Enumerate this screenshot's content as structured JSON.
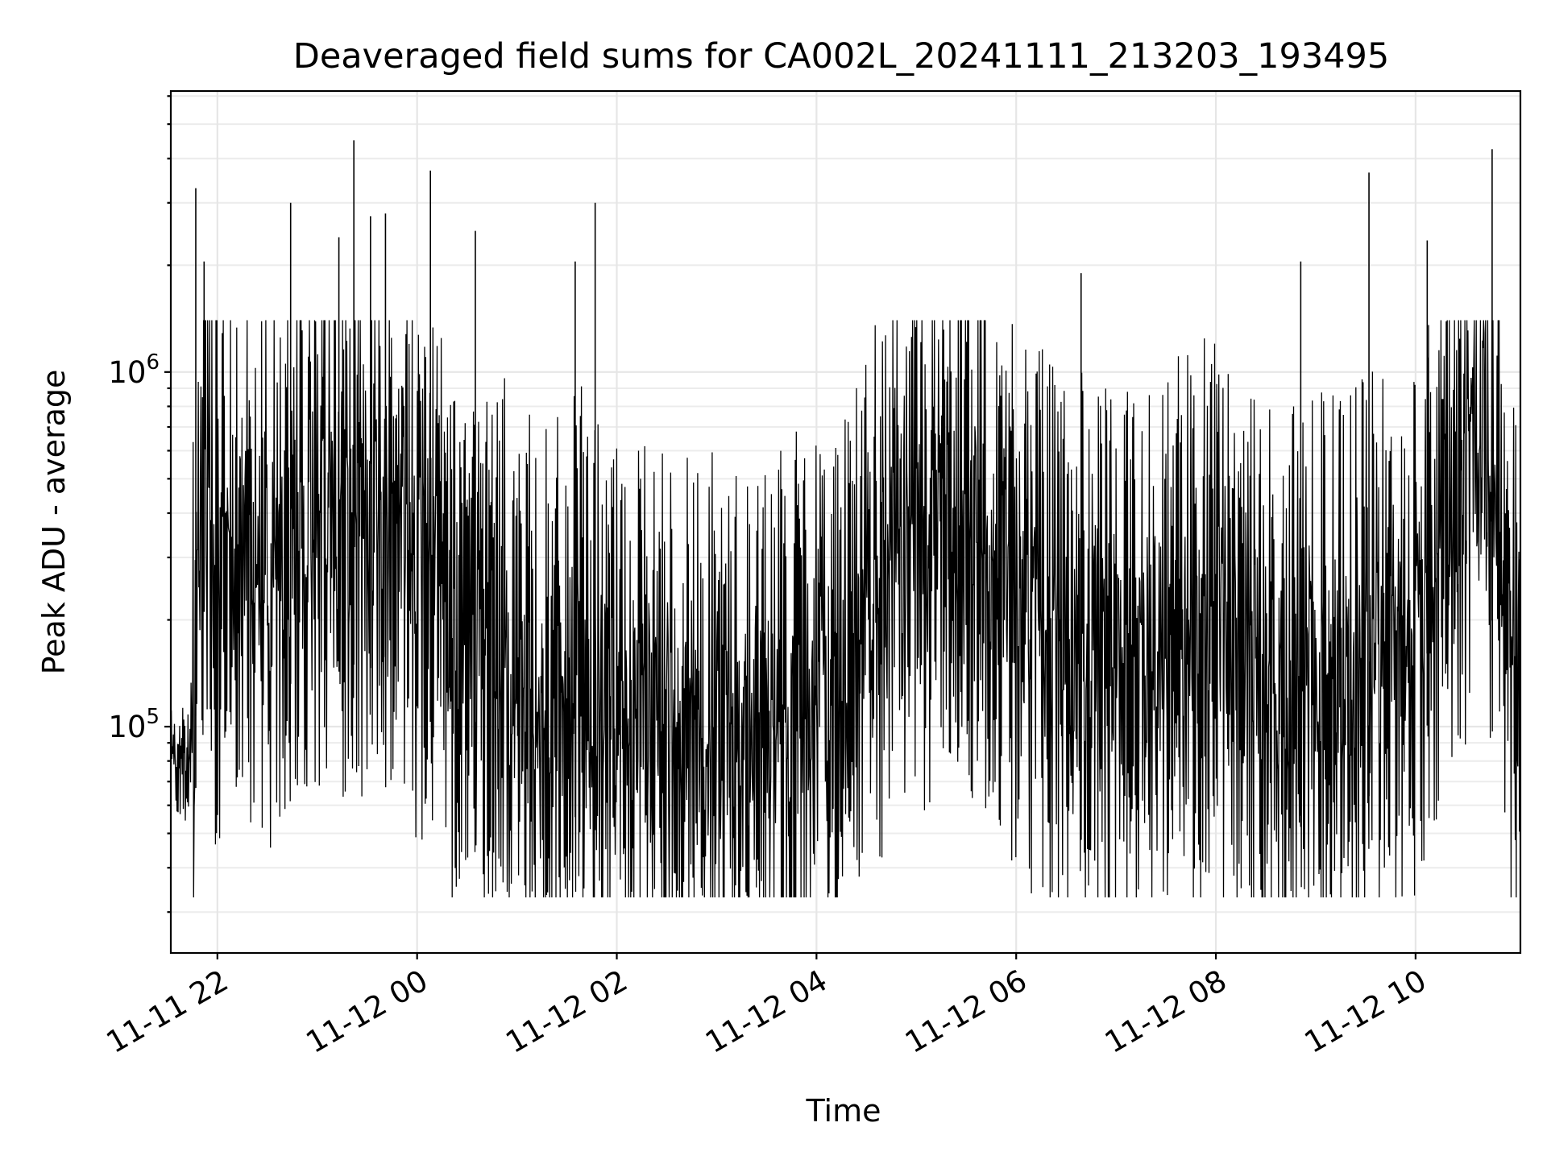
{
  "chart_data": {
    "type": "line",
    "title": "Deaveraged field sums for CA002L_20241111_213203_193495",
    "xlabel": "Time",
    "ylabel": "Peak ADU - average",
    "yscale": "log",
    "xlim": [
      "2024-11-11 21:32",
      "2024-11-12 11:03"
    ],
    "ylim": [
      23000,
      6200000
    ],
    "x_ticks": [
      {
        "t": "2024-11-11 22:00",
        "label": "11-11 22"
      },
      {
        "t": "2024-11-12 00:00",
        "label": "11-12 00"
      },
      {
        "t": "2024-11-12 02:00",
        "label": "11-12 02"
      },
      {
        "t": "2024-11-12 04:00",
        "label": "11-12 04"
      },
      {
        "t": "2024-11-12 06:00",
        "label": "11-12 06"
      },
      {
        "t": "2024-11-12 08:00",
        "label": "11-12 08"
      },
      {
        "t": "2024-11-12 10:00",
        "label": "11-12 10"
      }
    ],
    "y_ticks": [
      {
        "value": 100000,
        "base": "10",
        "exp": "5"
      },
      {
        "value": 1000000,
        "base": "10",
        "exp": "6"
      }
    ],
    "grid": true,
    "legend": "none",
    "line_color": "#000000",
    "series": [
      {
        "x": [
          "2024-11-11 21:32",
          "2024-11-11 21:40",
          "2024-11-11 21:46",
          "2024-11-11 21:50",
          "2024-11-11 21:54",
          "2024-11-11 22:00",
          "2024-11-11 22:10",
          "2024-11-11 22:20",
          "2024-11-11 22:30",
          "2024-11-11 22:40",
          "2024-11-11 22:50",
          "2024-11-11 23:00",
          "2024-11-11 23:10",
          "2024-11-11 23:20",
          "2024-11-11 23:30",
          "2024-11-11 23:40",
          "2024-11-11 23:50",
          "2024-11-12 00:00",
          "2024-11-12 00:10",
          "2024-11-12 00:20",
          "2024-11-12 00:30",
          "2024-11-12 00:40",
          "2024-11-12 00:50",
          "2024-11-12 01:00",
          "2024-11-12 01:10",
          "2024-11-12 01:20",
          "2024-11-12 01:30",
          "2024-11-12 01:40",
          "2024-11-12 01:50",
          "2024-11-12 02:00",
          "2024-11-12 02:10",
          "2024-11-12 02:20",
          "2024-11-12 02:30",
          "2024-11-12 02:40",
          "2024-11-12 02:50",
          "2024-11-12 03:00",
          "2024-11-12 03:10",
          "2024-11-12 03:20",
          "2024-11-12 03:30",
          "2024-11-12 03:40",
          "2024-11-12 03:50",
          "2024-11-12 04:00",
          "2024-11-12 04:10",
          "2024-11-12 04:20",
          "2024-11-12 04:30",
          "2024-11-12 04:40",
          "2024-11-12 04:50",
          "2024-11-12 05:00",
          "2024-11-12 05:10",
          "2024-11-12 05:20",
          "2024-11-12 05:30",
          "2024-11-12 05:40",
          "2024-11-12 05:50",
          "2024-11-12 06:00",
          "2024-11-12 06:10",
          "2024-11-12 06:20",
          "2024-11-12 06:30",
          "2024-11-12 06:40",
          "2024-11-12 06:50",
          "2024-11-12 07:00",
          "2024-11-12 07:10",
          "2024-11-12 07:20",
          "2024-11-12 07:30",
          "2024-11-12 07:40",
          "2024-11-12 07:50",
          "2024-11-12 08:00",
          "2024-11-12 08:10",
          "2024-11-12 08:20",
          "2024-11-12 08:30",
          "2024-11-12 08:40",
          "2024-11-12 08:50",
          "2024-11-12 09:00",
          "2024-11-12 09:10",
          "2024-11-12 09:20",
          "2024-11-12 09:30",
          "2024-11-12 09:40",
          "2024-11-12 09:50",
          "2024-11-12 10:00",
          "2024-11-12 10:10",
          "2024-11-12 10:20",
          "2024-11-12 10:30",
          "2024-11-12 10:40",
          "2024-11-12 10:50",
          "2024-11-12 11:00"
        ],
        "values": [
          90000,
          75000,
          105000,
          700000,
          400000,
          250000,
          300000,
          320000,
          280000,
          320000,
          350000,
          400000,
          420000,
          380000,
          360000,
          400000,
          350000,
          300000,
          250000,
          200000,
          180000,
          170000,
          160000,
          140000,
          120000,
          110000,
          130000,
          150000,
          120000,
          100000,
          95000,
          100000,
          110000,
          105000,
          100000,
          95000,
          90000,
          95000,
          100000,
          105000,
          110000,
          120000,
          130000,
          180000,
          200000,
          250000,
          300000,
          350000,
          380000,
          400000,
          380000,
          350000,
          300000,
          250000,
          200000,
          180000,
          170000,
          160000,
          150000,
          150000,
          160000,
          170000,
          180000,
          190000,
          200000,
          200000,
          180000,
          160000,
          140000,
          130000,
          130000,
          140000,
          150000,
          150000,
          160000,
          160000,
          170000,
          200000,
          280000,
          450000,
          500000,
          700000,
          400000,
          150000
        ]
      }
    ],
    "spikes": [
      {
        "t": "2024-11-11 21:47",
        "value": 3300000
      },
      {
        "t": "2024-11-11 21:52",
        "value": 2050000
      },
      {
        "t": "2024-11-11 22:44",
        "value": 3000000
      },
      {
        "t": "2024-11-11 23:13",
        "value": 2400000
      },
      {
        "t": "2024-11-11 23:22",
        "value": 4500000
      },
      {
        "t": "2024-11-11 23:32",
        "value": 2750000
      },
      {
        "t": "2024-11-11 23:41",
        "value": 2800000
      },
      {
        "t": "2024-11-12 00:08",
        "value": 3700000
      },
      {
        "t": "2024-11-12 00:35",
        "value": 2500000
      },
      {
        "t": "2024-11-12 01:35",
        "value": 2050000
      },
      {
        "t": "2024-11-12 01:47",
        "value": 3000000
      },
      {
        "t": "2024-11-12 06:39",
        "value": 1900000
      },
      {
        "t": "2024-11-12 08:51",
        "value": 2050000
      },
      {
        "t": "2024-11-12 09:32",
        "value": 3650000
      },
      {
        "t": "2024-11-12 10:07",
        "value": 2350000
      },
      {
        "t": "2024-11-12 10:46",
        "value": 4250000
      }
    ]
  }
}
